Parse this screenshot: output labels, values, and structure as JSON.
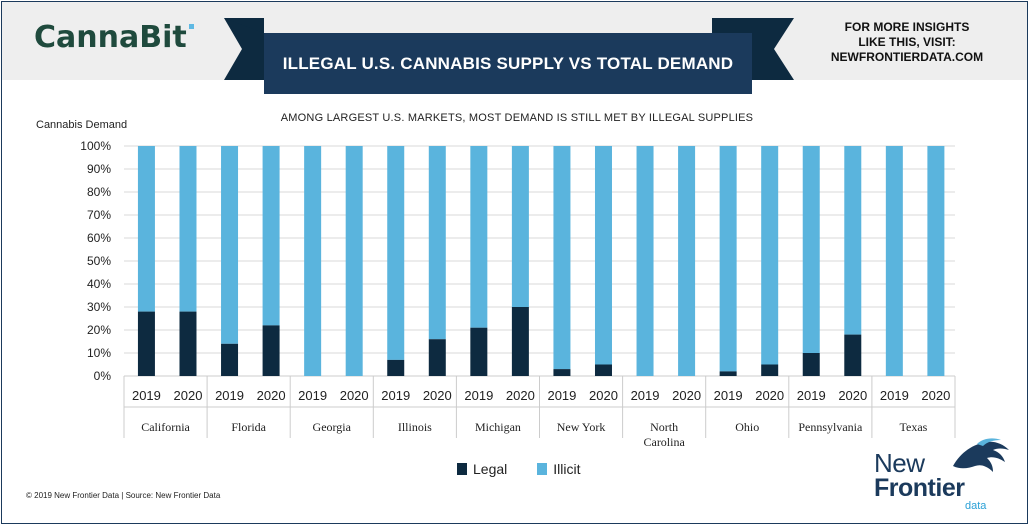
{
  "header": {
    "logo": "CannaBit",
    "title": "ILLEGAL U.S. CANNABIS SUPPLY VS TOTAL DEMAND",
    "insights": [
      "FOR MORE INSIGHTS",
      "LIKE THIS, VISIT:",
      "NEWFRONTIERDATA.COM"
    ]
  },
  "subtitle": "AMONG LARGEST U.S. MARKETS, MOST DEMAND IS STILL MET BY ILLEGAL SUPPLIES",
  "footer": "© 2019  New Frontier Data | Source:  New Frontier Data",
  "brand": {
    "line1": "New",
    "line2": "Frontier",
    "line3": "data"
  },
  "colors": {
    "legal": "#0d2a40",
    "illicit": "#5ab4dd",
    "banner": "#1b3a5c"
  },
  "chart_data": {
    "type": "bar",
    "stacked": true,
    "ylabel": "Cannabis Demand",
    "ylim": [
      0,
      100
    ],
    "yticks": [
      "0%",
      "10%",
      "20%",
      "30%",
      "40%",
      "50%",
      "60%",
      "70%",
      "80%",
      "90%",
      "100%"
    ],
    "years": [
      "2019",
      "2020"
    ],
    "states": [
      {
        "name": [
          "California"
        ],
        "legal": [
          28,
          28
        ]
      },
      {
        "name": [
          "Florida"
        ],
        "legal": [
          14,
          22
        ]
      },
      {
        "name": [
          "Georgia"
        ],
        "legal": [
          0,
          0
        ]
      },
      {
        "name": [
          "Illinois"
        ],
        "legal": [
          7,
          16
        ]
      },
      {
        "name": [
          "Michigan"
        ],
        "legal": [
          21,
          30
        ]
      },
      {
        "name": [
          "New York"
        ],
        "legal": [
          3,
          5
        ]
      },
      {
        "name": [
          "North",
          "Carolina"
        ],
        "legal": [
          0,
          0
        ]
      },
      {
        "name": [
          "Ohio"
        ],
        "legal": [
          2,
          5
        ]
      },
      {
        "name": [
          "Pennsylvania"
        ],
        "legal": [
          10,
          18
        ]
      },
      {
        "name": [
          "Texas"
        ],
        "legal": [
          0,
          0
        ]
      }
    ],
    "legend": [
      "Legal",
      "Illicit"
    ],
    "legend_position": "bottom"
  }
}
